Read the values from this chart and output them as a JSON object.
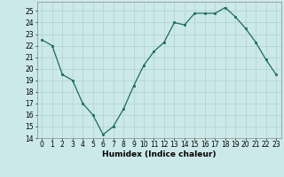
{
  "x": [
    0,
    1,
    2,
    3,
    4,
    5,
    6,
    7,
    8,
    9,
    10,
    11,
    12,
    13,
    14,
    15,
    16,
    17,
    18,
    19,
    20,
    21,
    22,
    23
  ],
  "y": [
    22.5,
    22.0,
    19.5,
    19.0,
    17.0,
    16.0,
    14.3,
    15.0,
    16.5,
    18.5,
    20.3,
    21.5,
    22.3,
    24.0,
    23.8,
    24.8,
    24.8,
    24.8,
    25.3,
    24.5,
    23.5,
    22.3,
    20.8,
    19.5
  ],
  "line_color": "#1a6b5e",
  "marker": "s",
  "marker_size": 2,
  "bg_color": "#cce9e9",
  "grid_color": "#b0d0d0",
  "xlabel": "Humidex (Indice chaleur)",
  "xlim": [
    -0.5,
    23.5
  ],
  "ylim": [
    14,
    25.8
  ],
  "yticks": [
    14,
    15,
    16,
    17,
    18,
    19,
    20,
    21,
    22,
    23,
    24,
    25
  ],
  "xticks": [
    0,
    1,
    2,
    3,
    4,
    5,
    6,
    7,
    8,
    9,
    10,
    11,
    12,
    13,
    14,
    15,
    16,
    17,
    18,
    19,
    20,
    21,
    22,
    23
  ],
  "tick_fontsize": 5.5,
  "xlabel_fontsize": 6.5
}
